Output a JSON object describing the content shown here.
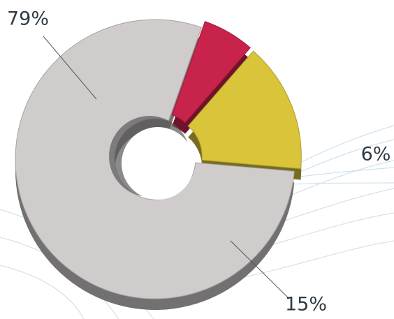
{
  "chart_data": {
    "type": "pie",
    "donut": true,
    "values": [
      79,
      6,
      15
    ],
    "value_labels": [
      "79%",
      "6%",
      "15%"
    ],
    "colors": [
      "#cfcccb",
      "#c8234a",
      "#d9c43a"
    ]
  }
}
